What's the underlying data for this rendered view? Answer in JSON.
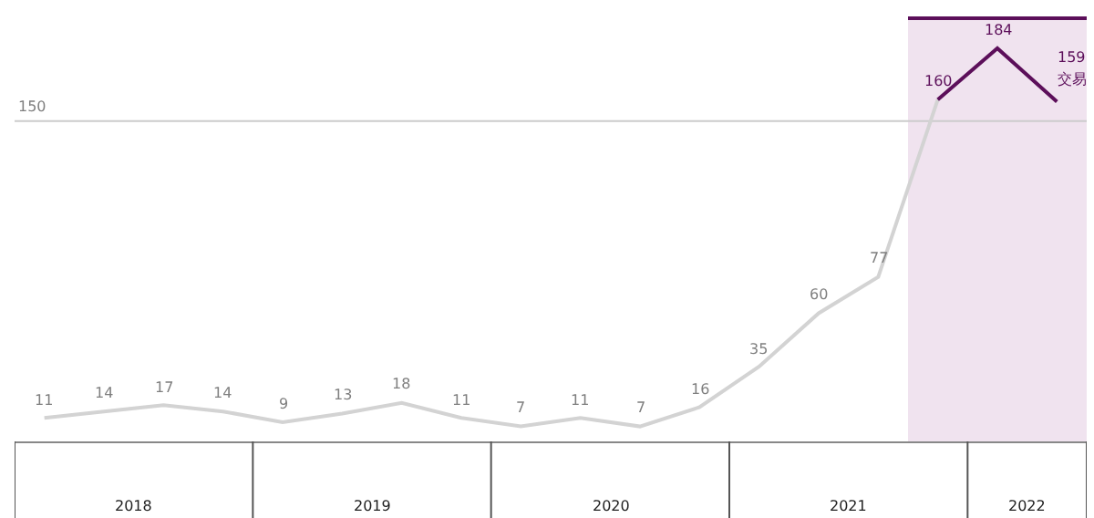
{
  "chart_data": {
    "type": "line",
    "categories": [
      null,
      null,
      null,
      null,
      null,
      null,
      null,
      null,
      null,
      null,
      null,
      null,
      null,
      null,
      null,
      null,
      null,
      null
    ],
    "series": [
      {
        "color": "#d3d3d3",
        "values": [
          11,
          14,
          17,
          14,
          9,
          13,
          18,
          11,
          7,
          11,
          7,
          16,
          35,
          60,
          77,
          160,
          null,
          null
        ],
        "value_labels": [
          "11",
          "14",
          "17",
          "14",
          "9",
          "13",
          "18",
          "11",
          "7",
          "11",
          "7",
          "16",
          "35",
          "60",
          "77",
          null,
          null,
          null
        ]
      },
      {
        "name": "交易",
        "color": "#5c0f5a",
        "values": [
          null,
          null,
          null,
          null,
          null,
          null,
          null,
          null,
          null,
          null,
          null,
          null,
          null,
          null,
          null,
          160,
          184,
          159
        ],
        "value_labels": [
          null,
          null,
          null,
          null,
          null,
          null,
          null,
          null,
          null,
          null,
          null,
          null,
          null,
          null,
          null,
          "160",
          "184",
          "159"
        ]
      }
    ],
    "ref_lines": [
      {
        "axis": "y",
        "value": 150,
        "label": "150",
        "color": "#cccccc"
      }
    ],
    "annotations": [
      "2018",
      "2019",
      "2020",
      "2021",
      "2022"
    ],
    "grid": false,
    "legend": false,
    "marker": "none",
    "tick_labels": false
  }
}
